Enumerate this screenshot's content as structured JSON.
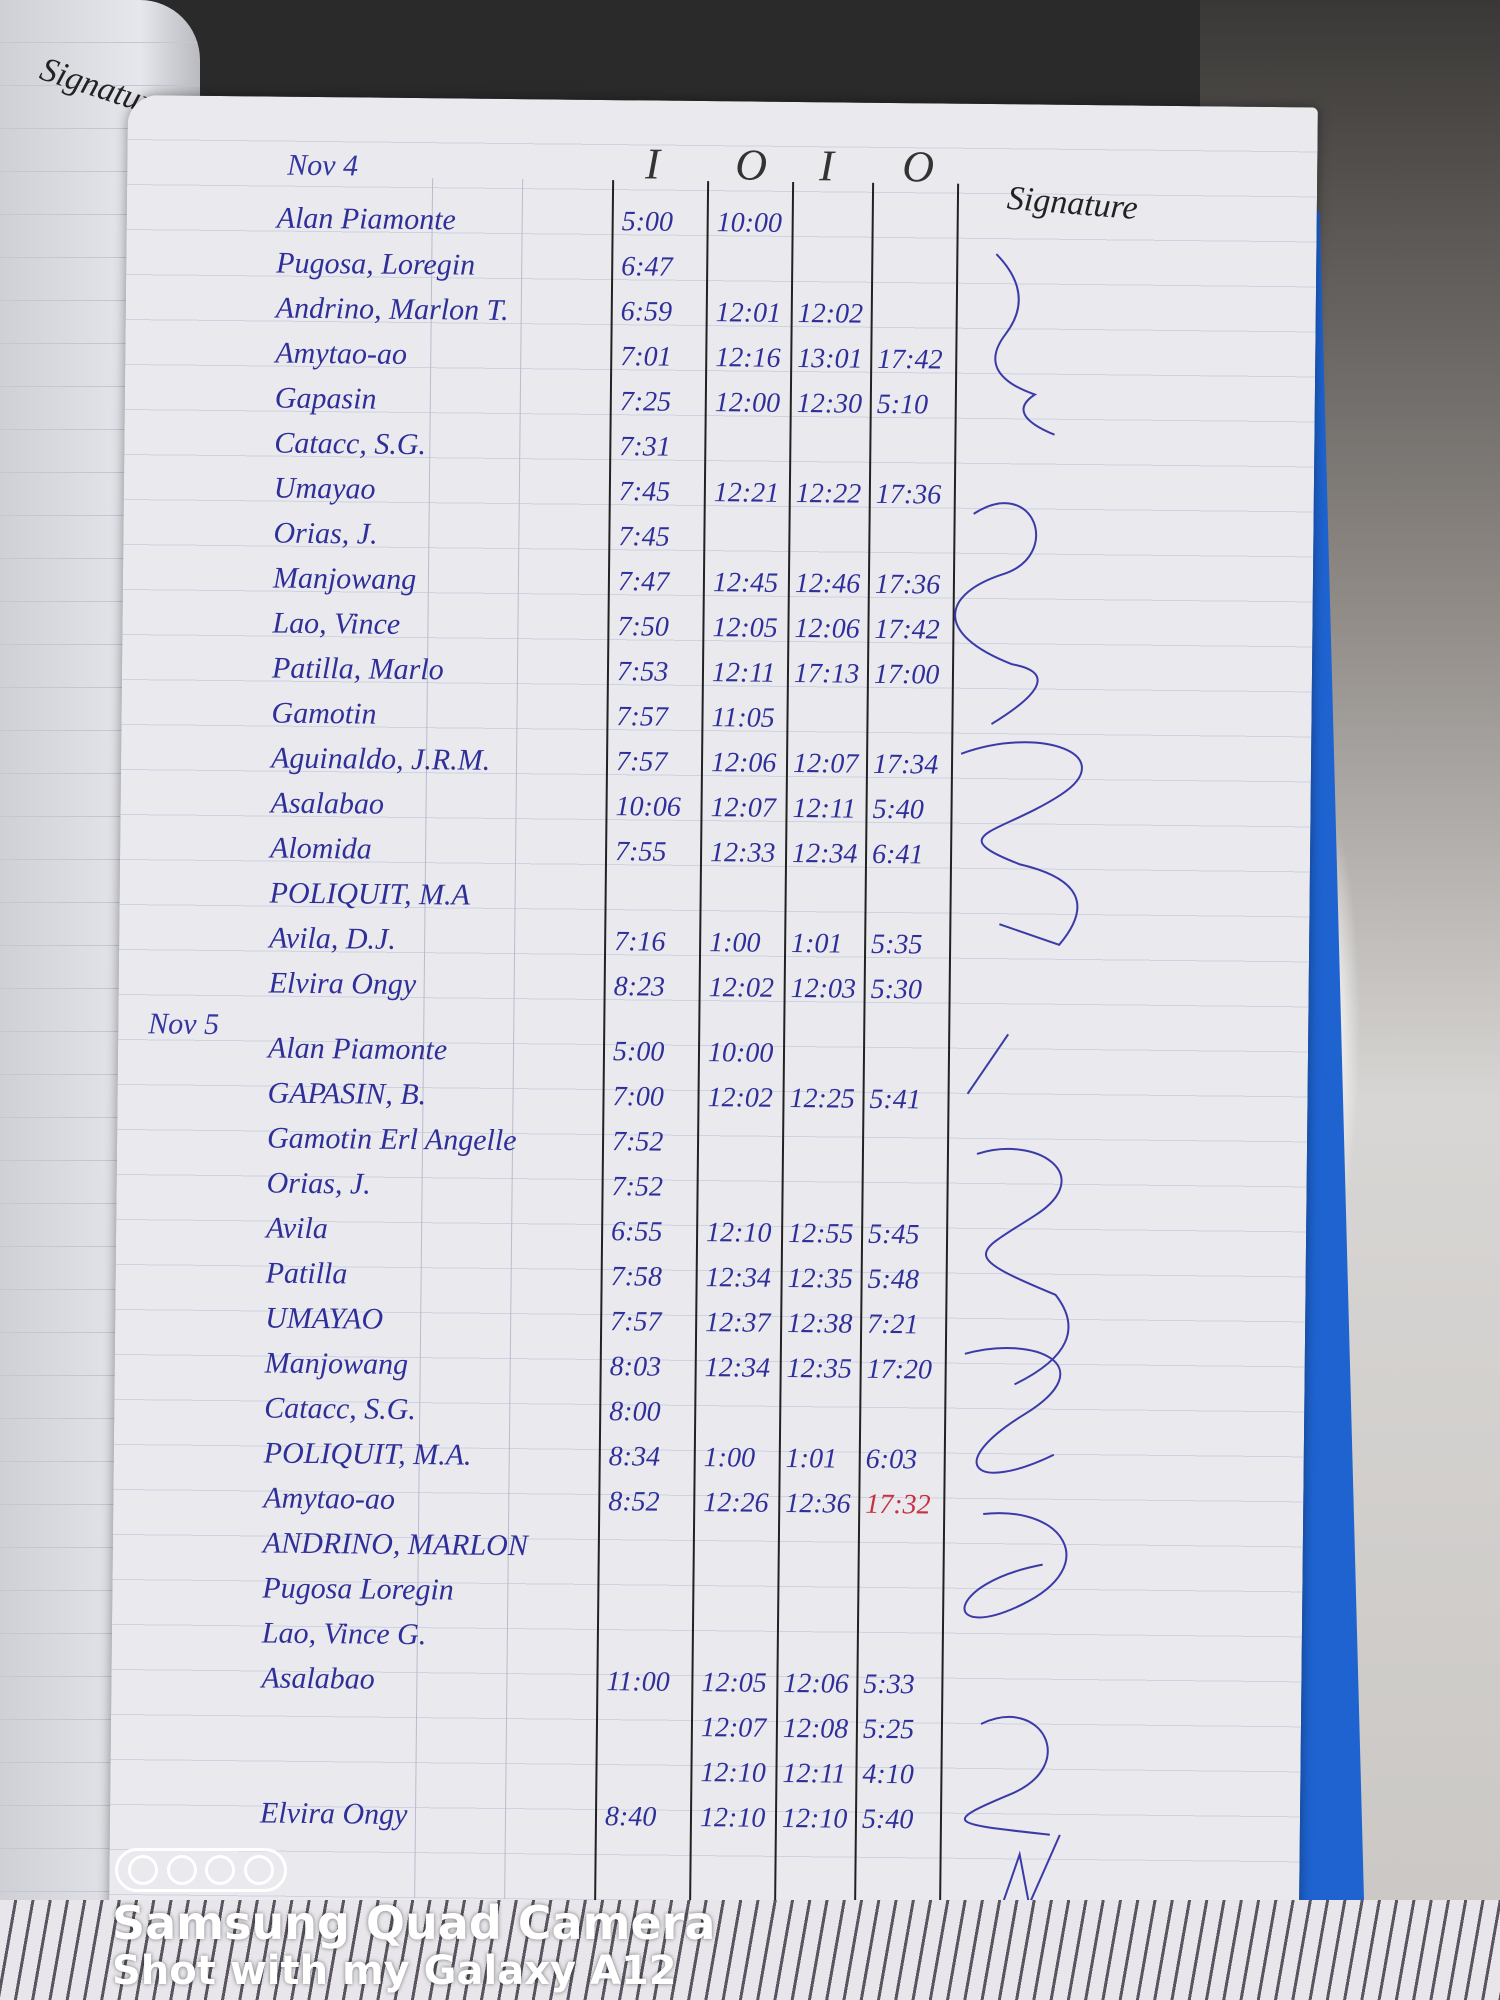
{
  "left_page": {
    "header": "Signature"
  },
  "header": {
    "date": "Nov 4",
    "columns": [
      "I",
      "O",
      "I",
      "O"
    ],
    "signature": "Signature"
  },
  "second_date": "Nov 5",
  "entries": [
    {
      "name": "Alan Piamonte",
      "times": [
        "5:00",
        "10:00",
        "",
        ""
      ]
    },
    {
      "name": "Pugosa, Loregin",
      "times": [
        "6:47",
        "",
        "",
        ""
      ]
    },
    {
      "name": "Andrino, Marlon T.",
      "times": [
        "6:59",
        "12:01",
        "12:02",
        ""
      ]
    },
    {
      "name": "Amytao-ao",
      "times": [
        "7:01",
        "12:16",
        "13:01",
        "17:42"
      ]
    },
    {
      "name": "Gapasin",
      "times": [
        "7:25",
        "12:00",
        "12:30",
        "5:10"
      ]
    },
    {
      "name": "Catacc, S.G.",
      "times": [
        "7:31",
        "",
        "",
        ""
      ]
    },
    {
      "name": "Umayao",
      "times": [
        "7:45",
        "12:21",
        "12:22",
        "17:36"
      ]
    },
    {
      "name": "Orias, J.",
      "times": [
        "7:45",
        "",
        "",
        ""
      ]
    },
    {
      "name": "Manjowang",
      "times": [
        "7:47",
        "12:45",
        "12:46",
        "17:36"
      ]
    },
    {
      "name": "Lao, Vince",
      "times": [
        "7:50",
        "12:05",
        "12:06",
        "17:42"
      ]
    },
    {
      "name": "Patilla, Marlo",
      "times": [
        "7:53",
        "12:11",
        "17:13",
        "17:00"
      ]
    },
    {
      "name": "Gamotin",
      "times": [
        "7:57",
        "11:05",
        "",
        ""
      ]
    },
    {
      "name": "Aguinaldo, J.R.M.",
      "times": [
        "7:57",
        "12:06",
        "12:07",
        "17:34"
      ]
    },
    {
      "name": "Asalabao",
      "times": [
        "10:06",
        "12:07",
        "12:11",
        "5:40"
      ]
    },
    {
      "name": "Alomida",
      "times": [
        "7:55",
        "12:33",
        "12:34",
        "6:41"
      ]
    },
    {
      "name": "POLIQUIT, M.A",
      "times": [
        "",
        "",
        "",
        ""
      ]
    },
    {
      "name": "Avila, D.J.",
      "times": [
        "7:16",
        "1:00",
        "1:01",
        "5:35"
      ]
    },
    {
      "name": "Elvira Ongy",
      "times": [
        "8:23",
        "12:02",
        "12:03",
        "5:30"
      ]
    },
    {
      "name": "Alan Piamonte",
      "times": [
        "5:00",
        "10:00",
        "",
        ""
      ]
    },
    {
      "name": "GAPASIN, B.",
      "times": [
        "7:00",
        "12:02",
        "12:25",
        "5:41"
      ]
    },
    {
      "name": "Gamotin Erl Angelle",
      "times": [
        "7:52",
        "",
        "",
        ""
      ]
    },
    {
      "name": "Orias, J.",
      "times": [
        "7:52",
        "",
        "",
        ""
      ]
    },
    {
      "name": "Avila",
      "times": [
        "6:55",
        "12:10",
        "12:55",
        "5:45"
      ]
    },
    {
      "name": "Patilla",
      "times": [
        "7:58",
        "12:34",
        "12:35",
        "5:48"
      ]
    },
    {
      "name": "UMAYAO",
      "times": [
        "7:57",
        "12:37",
        "12:38",
        "7:21"
      ]
    },
    {
      "name": "Manjowang",
      "times": [
        "8:03",
        "12:34",
        "12:35",
        "17:20"
      ]
    },
    {
      "name": "Catacc, S.G.",
      "times": [
        "8:00",
        "",
        "",
        ""
      ]
    },
    {
      "name": "POLIQUIT, M.A.",
      "times": [
        "8:34",
        "1:00",
        "1:01",
        "6:03"
      ]
    },
    {
      "name": "Amytao-ao",
      "times": [
        "8:52",
        "12:26",
        "12:36",
        "17:32"
      ],
      "last_red": true
    },
    {
      "name": "ANDRINO, MARLON",
      "times": [
        "",
        "",
        "",
        ""
      ]
    },
    {
      "name": "Pugosa Loregin",
      "times": [
        "",
        "",
        "",
        ""
      ]
    },
    {
      "name": "Lao, Vince G.",
      "times": [
        "",
        "",
        "",
        ""
      ]
    },
    {
      "name": "Asalabao",
      "times": [
        "11:00",
        "12:05",
        "12:06",
        "5:33"
      ]
    },
    {
      "name": "",
      "times": [
        "",
        "12:07",
        "12:08",
        "5:25"
      ]
    },
    {
      "name": "",
      "times": [
        "",
        "12:10",
        "12:11",
        "4:10"
      ]
    },
    {
      "name": "Elvira Ongy",
      "times": [
        "8:40",
        "12:10",
        "12:10",
        "5:40"
      ]
    }
  ],
  "watermark": {
    "line1": "Samsung Quad Camera",
    "line2": "Shot with my Galaxy A12"
  },
  "colors": {
    "ink": "#2f2f9a",
    "red_ink": "#c83040",
    "book_edge": "#1e63d0",
    "paper": "#e9e9ee"
  }
}
